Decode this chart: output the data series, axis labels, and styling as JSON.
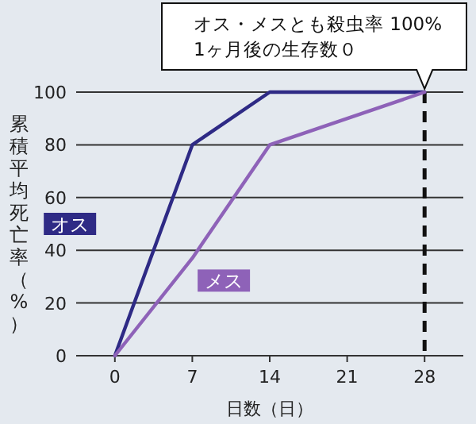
{
  "chart_data": {
    "type": "line",
    "xlabel": "日数（日）",
    "ylabel": "累積平均死亡率（%）",
    "x": [
      0,
      7,
      14,
      28
    ],
    "series": [
      {
        "name": "オス",
        "color": "#2e2a85",
        "values": [
          0,
          80,
          100,
          100
        ]
      },
      {
        "name": "メス",
        "color": "#8e62b8",
        "values": [
          0,
          37,
          80,
          100
        ]
      }
    ],
    "xlim": [
      -3.5,
      31.5
    ],
    "ylim": [
      0,
      100
    ],
    "xticks": [
      0,
      7,
      14,
      21,
      28
    ],
    "yticks": [
      0,
      20,
      40,
      60,
      80,
      100
    ],
    "grid": "y",
    "legend": false,
    "marker": "none",
    "line_style": "solid",
    "ref_lines": [
      {
        "axis": "x",
        "value": 28,
        "color": "#111111",
        "line_style": "dashed"
      }
    ],
    "annotations": [
      {
        "text": "オス・メスとも殺虫率 100%\n1ヶ月後の生存数０",
        "x": 28,
        "y": 100
      }
    ]
  }
}
